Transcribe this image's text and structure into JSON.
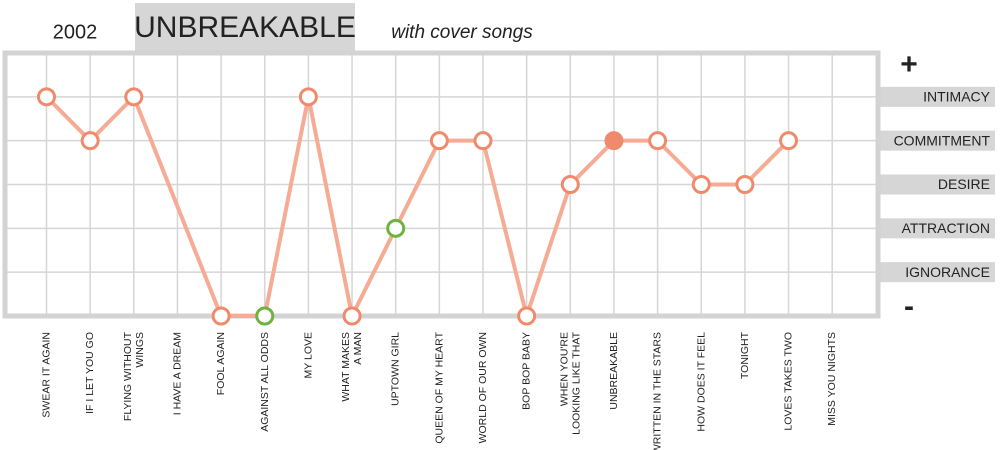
{
  "chart_data": {
    "type": "line",
    "year": "2002",
    "title": "UNBREAKABLE",
    "subtitle": "with cover songs",
    "categories": [
      "SWEAR IT AGAIN",
      "IF I LET YOU GO",
      "FLYING WITHOUT\nWINGS",
      "I HAVE A DREAM",
      "FOOL AGAIN",
      "AGAINST ALL ODDS",
      "MY LOVE",
      "WHAT MAKES\nA MAN",
      "UPTOWN GIRL",
      "QUEEN OF MY HEART",
      "WORLD OF OUR OWN",
      "BOP BOP BABY",
      "WHEN YOU'RE\nLOOKING LIKE THAT",
      "UNBREAKABLE",
      "WRITTEN IN THE STARS",
      "HOW DOES IT FEEL",
      "TONIGHT",
      "LOVES TAKES TWO",
      "MISS YOU NIGHTS"
    ],
    "label_colors": [
      "#222",
      "#222",
      "#222",
      "#7ab648",
      "#222",
      "#7ab648",
      "#222",
      "#222",
      "#7ab648",
      "#222",
      "#222",
      "#222",
      "#222",
      "#222",
      "#222",
      "#222",
      "#222",
      "#222",
      "#bbbbbb"
    ],
    "values": [
      5,
      4,
      5,
      null,
      0,
      0,
      5,
      0,
      2,
      4,
      4,
      0,
      3,
      4,
      4,
      3,
      3,
      4,
      null
    ],
    "point_colors": [
      "#f08a6c",
      "#f08a6c",
      "#f08a6c",
      null,
      "#f08a6c",
      "#6db33f",
      "#f08a6c",
      "#f08a6c",
      "#6db33f",
      "#f08a6c",
      "#f08a6c",
      "#f08a6c",
      "#f08a6c",
      "#f08a6c",
      "#f08a6c",
      "#f08a6c",
      "#f08a6c",
      "#f08a6c",
      null
    ],
    "filled_index": 13,
    "line_color": "#f5ab94",
    "ylim": [
      0,
      6
    ],
    "yticks": [
      {
        "value": 1,
        "label": "IGNORANCE"
      },
      {
        "value": 2,
        "label": "ATTRACTION"
      },
      {
        "value": 3,
        "label": "DESIRE"
      },
      {
        "value": 4,
        "label": "COMMITMENT"
      },
      {
        "value": 5,
        "label": "INTIMACY"
      }
    ],
    "top_label": "+",
    "bottom_label": "-",
    "grid": true
  }
}
